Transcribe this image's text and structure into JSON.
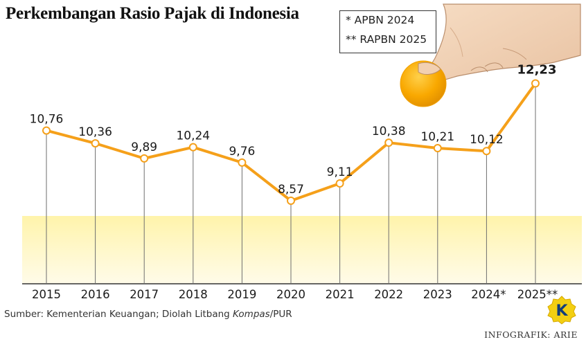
{
  "chart_data": {
    "type": "line",
    "title": "Perkembangan Rasio Pajak di Indonesia",
    "categories": [
      "2015",
      "2016",
      "2017",
      "2018",
      "2019",
      "2020",
      "2021",
      "2022",
      "2023",
      "2024*",
      "2025**"
    ],
    "values": [
      10.76,
      10.36,
      9.89,
      10.24,
      9.76,
      8.57,
      9.11,
      10.38,
      10.21,
      10.12,
      12.23
    ],
    "value_labels": [
      "10,76",
      "10,36",
      "9,89",
      "10,24",
      "9,76",
      "8,57",
      "9,11",
      "10,38",
      "10,21",
      "10,12",
      "12,23"
    ],
    "xlabel": "",
    "ylabel": "",
    "grid": false,
    "legend_position": "top-right",
    "notes": [
      "* APBN 2024",
      "** RAPBN 2025"
    ],
    "colors": {
      "line": "#f5a01a",
      "marker_fill": "#ffffff",
      "band_top": "#fff3a6",
      "band_bottom": "#fff9dc",
      "coin": "#f9a800"
    }
  },
  "source": {
    "prefix": "Sumber: Kementerian Keuangan; Diolah Litbang ",
    "italic": "Kompas",
    "suffix": "/PUR"
  },
  "credit": "INFOGRAFIK: ARIE",
  "logo": {
    "letter": "K",
    "icon": "kompas-logo-icon"
  },
  "illustration": {
    "icon": "hand-holding-coin-icon"
  }
}
